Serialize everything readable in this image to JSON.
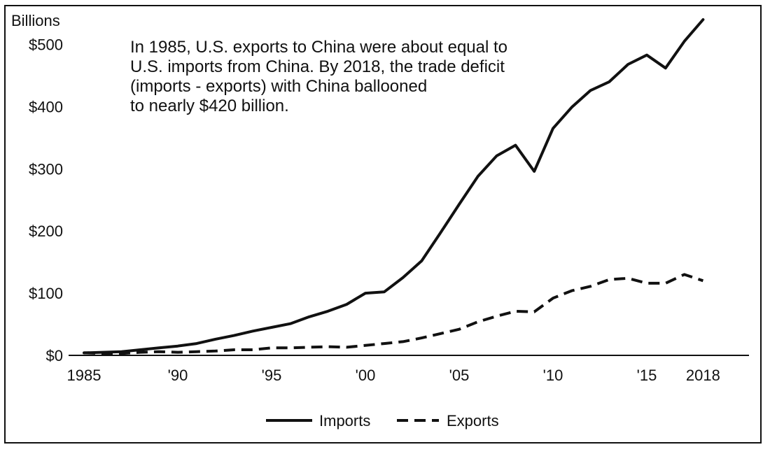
{
  "chart_data": {
    "type": "line",
    "title": "",
    "annotation": "In 1985, U.S. exports to China were about equal to\nU.S. imports from China.  By 2018, the trade deficit\n(imports - exports) with China ballooned\nto nearly $420 billion.",
    "ylabel": "Billions",
    "xlabel": "",
    "x": [
      1985,
      1986,
      1987,
      1988,
      1989,
      1990,
      1991,
      1992,
      1993,
      1994,
      1995,
      1996,
      1997,
      1998,
      1999,
      2000,
      2001,
      2002,
      2003,
      2004,
      2005,
      2006,
      2007,
      2008,
      2009,
      2010,
      2011,
      2012,
      2013,
      2014,
      2015,
      2016,
      2017,
      2018
    ],
    "xlim": [
      1985,
      2020
    ],
    "ylim": [
      0,
      540
    ],
    "x_ticks": [
      {
        "value": 1985,
        "label": "1985"
      },
      {
        "value": 1990,
        "label": "'90"
      },
      {
        "value": 1995,
        "label": "'95"
      },
      {
        "value": 2000,
        "label": "'00"
      },
      {
        "value": 2005,
        "label": "'05"
      },
      {
        "value": 2010,
        "label": "'10"
      },
      {
        "value": 2015,
        "label": "'15"
      },
      {
        "value": 2018,
        "label": "2018"
      }
    ],
    "y_ticks": [
      {
        "value": 0,
        "label": "$0"
      },
      {
        "value": 100,
        "label": "$100"
      },
      {
        "value": 200,
        "label": "$200"
      },
      {
        "value": 300,
        "label": "$300"
      },
      {
        "value": 400,
        "label": "$400"
      },
      {
        "value": 500,
        "label": "$500"
      }
    ],
    "grid": false,
    "legend_position": "bottom-center",
    "series": [
      {
        "name": "Imports",
        "style": "solid",
        "color": "#111111",
        "values": [
          4,
          5,
          6,
          9,
          12,
          15,
          19,
          26,
          32,
          39,
          45,
          51,
          62,
          71,
          82,
          100,
          102,
          125,
          152,
          197,
          243,
          288,
          321,
          338,
          296,
          365,
          399,
          426,
          440,
          468,
          483,
          462,
          505,
          540
        ]
      },
      {
        "name": "Exports",
        "style": "dashed",
        "color": "#111111",
        "values": [
          4,
          3,
          3,
          5,
          6,
          5,
          6,
          7,
          9,
          9,
          12,
          12,
          13,
          14,
          13,
          16,
          19,
          22,
          28,
          35,
          42,
          54,
          63,
          71,
          70,
          92,
          104,
          111,
          122,
          124,
          116,
          116,
          130,
          120
        ]
      }
    ]
  }
}
